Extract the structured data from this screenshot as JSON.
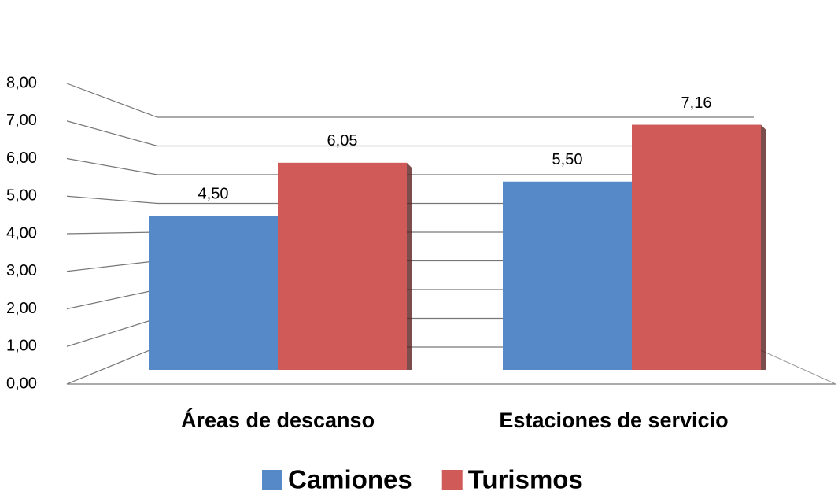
{
  "chart_data": {
    "type": "bar",
    "categories": [
      "Áreas de descanso",
      "Estaciones de servicio"
    ],
    "series": [
      {
        "name": "Camiones",
        "color": "#5589c8",
        "values": [
          4.5,
          5.5
        ],
        "value_labels": [
          "4,50",
          "5,50"
        ]
      },
      {
        "name": "Turismos",
        "color": "#d05a57",
        "values": [
          6.05,
          7.16
        ],
        "value_labels": [
          "6,05",
          "7,16"
        ]
      }
    ],
    "ylim": [
      0,
      8
    ],
    "yticks": [
      {
        "value": 0,
        "label": "0,00"
      },
      {
        "value": 1,
        "label": "1,00"
      },
      {
        "value": 2,
        "label": "2,00"
      },
      {
        "value": 3,
        "label": "3,00"
      },
      {
        "value": 4,
        "label": "4,00"
      },
      {
        "value": 5,
        "label": "5,00"
      },
      {
        "value": 6,
        "label": "6,00"
      },
      {
        "value": 7,
        "label": "7,00"
      },
      {
        "value": 8,
        "label": "8,00"
      }
    ],
    "grid": true
  }
}
